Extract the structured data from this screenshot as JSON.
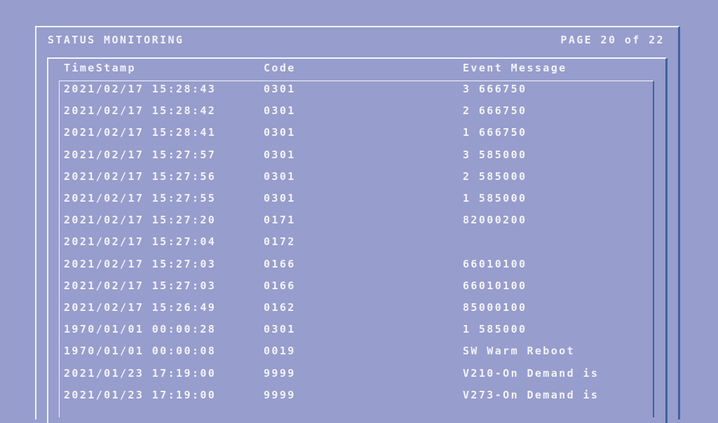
{
  "header": {
    "title": "STATUS MONITORING",
    "page": "PAGE 20 of 22"
  },
  "columns": {
    "timestamp": "TimeStamp",
    "code": "Code",
    "message": "Event Message"
  },
  "rows": [
    {
      "timestamp": "2021/02/17 15:28:43",
      "code": "0301",
      "message": "3 666750"
    },
    {
      "timestamp": "2021/02/17 15:28:42",
      "code": "0301",
      "message": "2 666750"
    },
    {
      "timestamp": "2021/02/17 15:28:41",
      "code": "0301",
      "message": "1 666750"
    },
    {
      "timestamp": "2021/02/17 15:27:57",
      "code": "0301",
      "message": "3 585000"
    },
    {
      "timestamp": "2021/02/17 15:27:56",
      "code": "0301",
      "message": "2 585000"
    },
    {
      "timestamp": "2021/02/17 15:27:55",
      "code": "0301",
      "message": "1 585000"
    },
    {
      "timestamp": "2021/02/17 15:27:20",
      "code": "0171",
      "message": "82000200"
    },
    {
      "timestamp": "2021/02/17 15:27:04",
      "code": "0172",
      "message": ""
    },
    {
      "timestamp": "2021/02/17 15:27:03",
      "code": "0166",
      "message": "66010100"
    },
    {
      "timestamp": "2021/02/17 15:27:03",
      "code": "0166",
      "message": "66010100"
    },
    {
      "timestamp": "2021/02/17 15:26:49",
      "code": "0162",
      "message": "85000100"
    },
    {
      "timestamp": "1970/01/01 00:00:28",
      "code": "0301",
      "message": "1 585000"
    },
    {
      "timestamp": "1970/01/01 00:00:08",
      "code": "0019",
      "message": "SW Warm Reboot"
    },
    {
      "timestamp": "2021/01/23 17:19:00",
      "code": "9999",
      "message": "V210-On Demand is"
    },
    {
      "timestamp": "2021/01/23 17:19:00",
      "code": "9999",
      "message": "V273-On Demand is"
    }
  ]
}
